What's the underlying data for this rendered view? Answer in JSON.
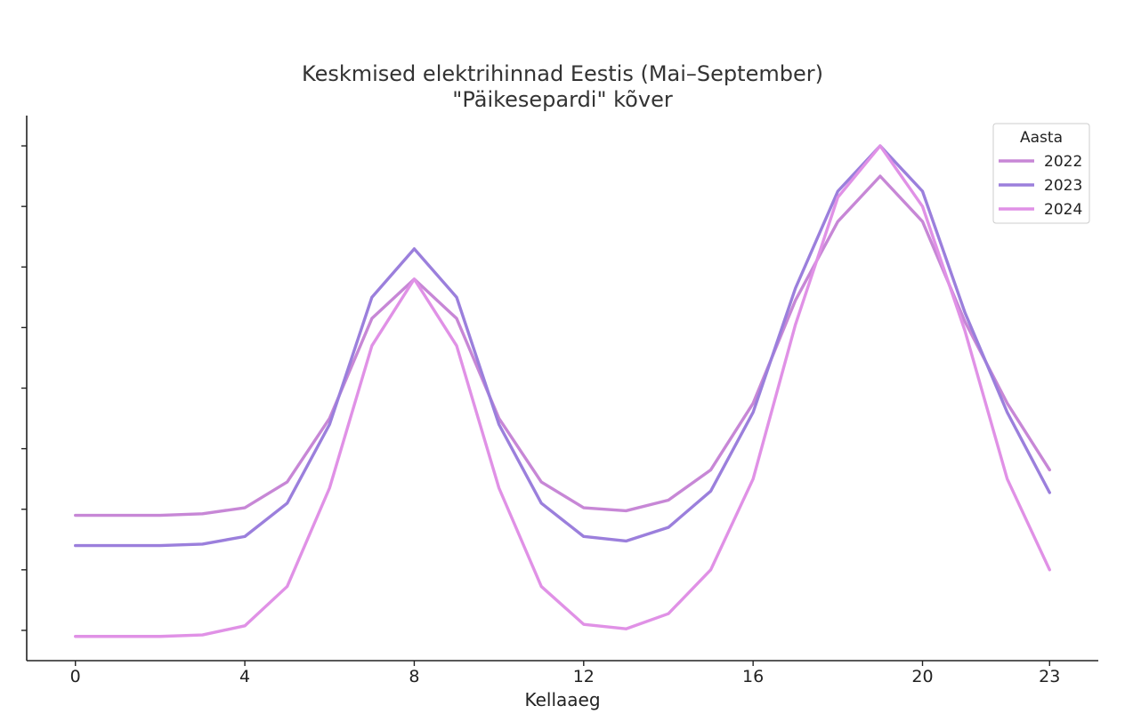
{
  "chart_data": {
    "type": "line",
    "title": [
      "Keskmised elektrihinnad Eestis (Mai–September)",
      "\"Päikesepardi\" kõver"
    ],
    "xlabel": "Kellaaeg",
    "ylabel": "",
    "xlim": [
      -1.15,
      24.15
    ],
    "ylim": [
      0,
      18
    ],
    "xticks": [
      0,
      4,
      8,
      12,
      16,
      20,
      23
    ],
    "yticks": [
      1,
      3,
      5,
      7,
      9,
      11,
      13,
      15,
      17
    ],
    "show_ytick_labels": false,
    "grid": false,
    "legend": {
      "title": "Aasta",
      "position": "top-right"
    },
    "x": [
      0,
      1,
      2,
      3,
      4,
      5,
      6,
      7,
      8,
      9,
      10,
      11,
      12,
      13,
      14,
      15,
      16,
      17,
      18,
      19,
      20,
      21,
      22,
      23
    ],
    "series": [
      {
        "name": "2022",
        "color": "#c787d6",
        "values": [
          4.8,
          4.8,
          4.8,
          4.85,
          5.05,
          5.9,
          8.0,
          11.3,
          12.6,
          11.3,
          8.0,
          5.9,
          5.05,
          4.95,
          5.3,
          6.3,
          8.5,
          11.9,
          14.5,
          16.0,
          14.5,
          11.2,
          8.5,
          6.3
        ]
      },
      {
        "name": "2023",
        "color": "#9b7fdc",
        "values": [
          3.8,
          3.8,
          3.8,
          3.85,
          4.1,
          5.2,
          7.8,
          12.0,
          13.6,
          12.0,
          7.8,
          5.2,
          4.1,
          3.95,
          4.4,
          5.6,
          8.2,
          12.3,
          15.5,
          17.0,
          15.5,
          11.5,
          8.2,
          5.55
        ]
      },
      {
        "name": "2024",
        "color": "#e091e6",
        "values": [
          0.8,
          0.8,
          0.8,
          0.85,
          1.15,
          2.45,
          5.7,
          10.4,
          12.6,
          10.4,
          5.7,
          2.45,
          1.2,
          1.05,
          1.55,
          3.0,
          6.0,
          11.1,
          15.3,
          17.0,
          15.0,
          10.9,
          6.0,
          3.0
        ]
      }
    ]
  }
}
